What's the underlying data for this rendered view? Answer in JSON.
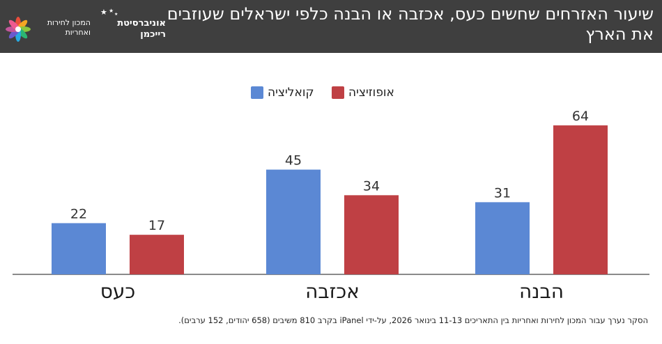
{
  "header": {
    "title": "שיעור האזרחים שחשים כעס, אכזבה או הבנה כלפי ישראלים שעוזבים את הארץ",
    "background": "#3f3f3f"
  },
  "logo": {
    "university": "אוניברסיטת רייכמן",
    "institute": "המכון לחירות ואחריות"
  },
  "legend": {
    "coalition": "קואליציה",
    "opposition": "אופוזיציה"
  },
  "chart_data": {
    "type": "bar",
    "categories": [
      "הבנה",
      "אכזבה",
      "כעס"
    ],
    "series": [
      {
        "name": "קואליציה",
        "values": [
          31,
          45,
          22
        ],
        "color": "#5b88d4"
      },
      {
        "name": "אופוזיציה",
        "values": [
          64,
          34,
          17
        ],
        "color": "#bf4044"
      }
    ],
    "ylim": [
      0,
      70
    ],
    "grid": false,
    "legend_position": "top-center",
    "data_labels": true
  },
  "footnote": "הסקר נערך עבור המכון לחירות ואחריות בין התאריכים 11-13 בינואר 2026, על-ידי iPanel בקרב 810 משיבים (658 יהודים, 152 ערבים)."
}
